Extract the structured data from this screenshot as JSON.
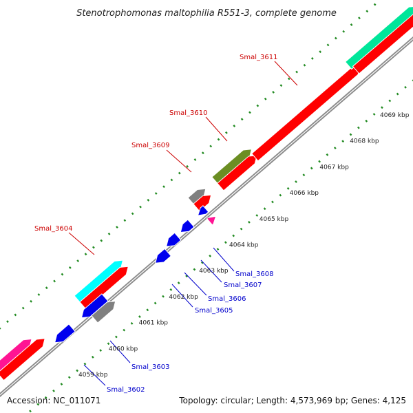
{
  "title": "Stenotrophomonas maltophilia R551-3, complete genome",
  "footer": {
    "accession": "Accession: NC_011071",
    "summary": "Topology: circular; Length: 4,573,969 bp; Genes: 4,125"
  },
  "colors": {
    "red": "#ff0000",
    "blue": "#0000ee",
    "gray": "#808080",
    "cyan": "#00ffff",
    "olive": "#6b8e23",
    "teal": "#00e69a",
    "magenta": "#ff1493",
    "dots": "#228b22",
    "forward_label": "#cc0000",
    "reverse_label": "#0000cc",
    "backbone": "#8c8c8c"
  },
  "scale": {
    "start_kbp": 4059,
    "end_kbp": 4069,
    "tick_unit": "kbp",
    "ticks": [
      {
        "kbp": 4059,
        "label": "4059 kbp"
      },
      {
        "kbp": 4060,
        "label": "4060 kbp"
      },
      {
        "kbp": 4061,
        "label": "4061 kbp"
      },
      {
        "kbp": 4062,
        "label": "4062 kbp"
      },
      {
        "kbp": 4063,
        "label": "4063 kbp"
      },
      {
        "kbp": 4064,
        "label": "4064 kbp"
      },
      {
        "kbp": 4065,
        "label": "4065 kbp"
      },
      {
        "kbp": 4066,
        "label": "4066 kbp"
      },
      {
        "kbp": 4067,
        "label": "4067 kbp"
      },
      {
        "kbp": 4068,
        "label": "4068 kbp"
      },
      {
        "kbp": 4069,
        "label": "4069 kbp"
      }
    ]
  },
  "labels": {
    "forward": [
      "Smal_3604",
      "Smal_3609",
      "Smal_3610",
      "Smal_3611"
    ],
    "reverse": [
      "Smal_3602",
      "Smal_3603",
      "Smal_3605",
      "Smal_3606",
      "Smal_3607",
      "Smal_3608"
    ]
  }
}
